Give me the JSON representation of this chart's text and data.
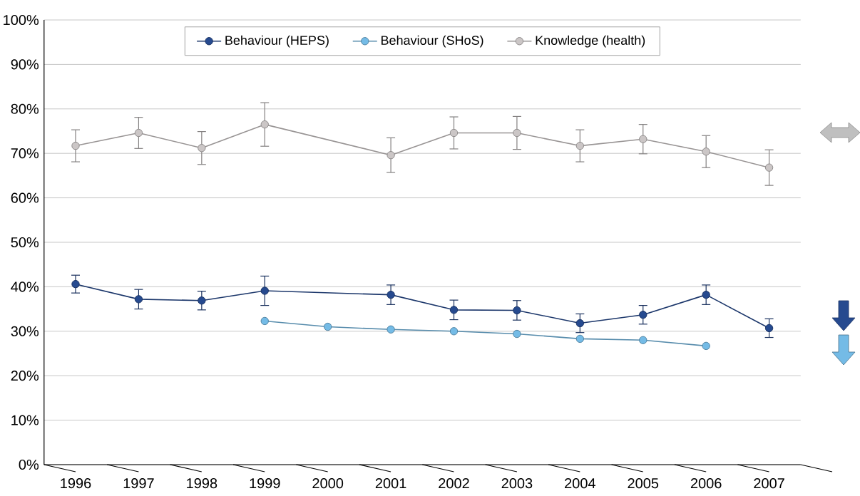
{
  "chart_data": {
    "type": "line",
    "categories": [
      "1996",
      "1997",
      "1998",
      "1999",
      "2000",
      "2001",
      "2002",
      "2003",
      "2004",
      "2005",
      "2006",
      "2007"
    ],
    "ylim": [
      0,
      100
    ],
    "yticks": [
      {
        "value": 0,
        "label": "0%"
      },
      {
        "value": 10,
        "label": "10%"
      },
      {
        "value": 20,
        "label": "20%"
      },
      {
        "value": 30,
        "label": "30%"
      },
      {
        "value": 40,
        "label": "40%"
      },
      {
        "value": 50,
        "label": "50%"
      },
      {
        "value": 60,
        "label": "60%"
      },
      {
        "value": 70,
        "label": "70%"
      },
      {
        "value": 80,
        "label": "80%"
      },
      {
        "value": 90,
        "label": "90%"
      },
      {
        "value": 100,
        "label": "100%"
      }
    ],
    "grid": "y",
    "legend": "top",
    "marker": "circle",
    "line_style": "solid",
    "series": [
      {
        "name": "Behaviour (HEPS)",
        "color": "#264a8f",
        "values": [
          40.6,
          37.2,
          36.9,
          39.1,
          null,
          38.2,
          34.8,
          34.7,
          31.8,
          33.7,
          38.2,
          30.7
        ],
        "errors": [
          2.0,
          2.2,
          2.1,
          3.3,
          null,
          2.2,
          2.2,
          2.2,
          2.1,
          2.1,
          2.2,
          2.1
        ]
      },
      {
        "name": "Behaviour (SHoS)",
        "color": "#74bbe6",
        "values": [
          null,
          null,
          null,
          32.3,
          31.0,
          30.4,
          30.0,
          29.4,
          28.3,
          28.0,
          26.7,
          null
        ]
      },
      {
        "name": "Knowledge (health)",
        "color": "#cbc6c6",
        "values": [
          71.7,
          74.6,
          71.2,
          76.5,
          null,
          69.6,
          74.6,
          74.6,
          71.7,
          73.2,
          70.4,
          66.8
        ],
        "errors": [
          3.6,
          3.5,
          3.7,
          4.9,
          null,
          3.9,
          3.6,
          3.7,
          3.6,
          3.3,
          3.6,
          4.0
        ]
      }
    ]
  }
}
